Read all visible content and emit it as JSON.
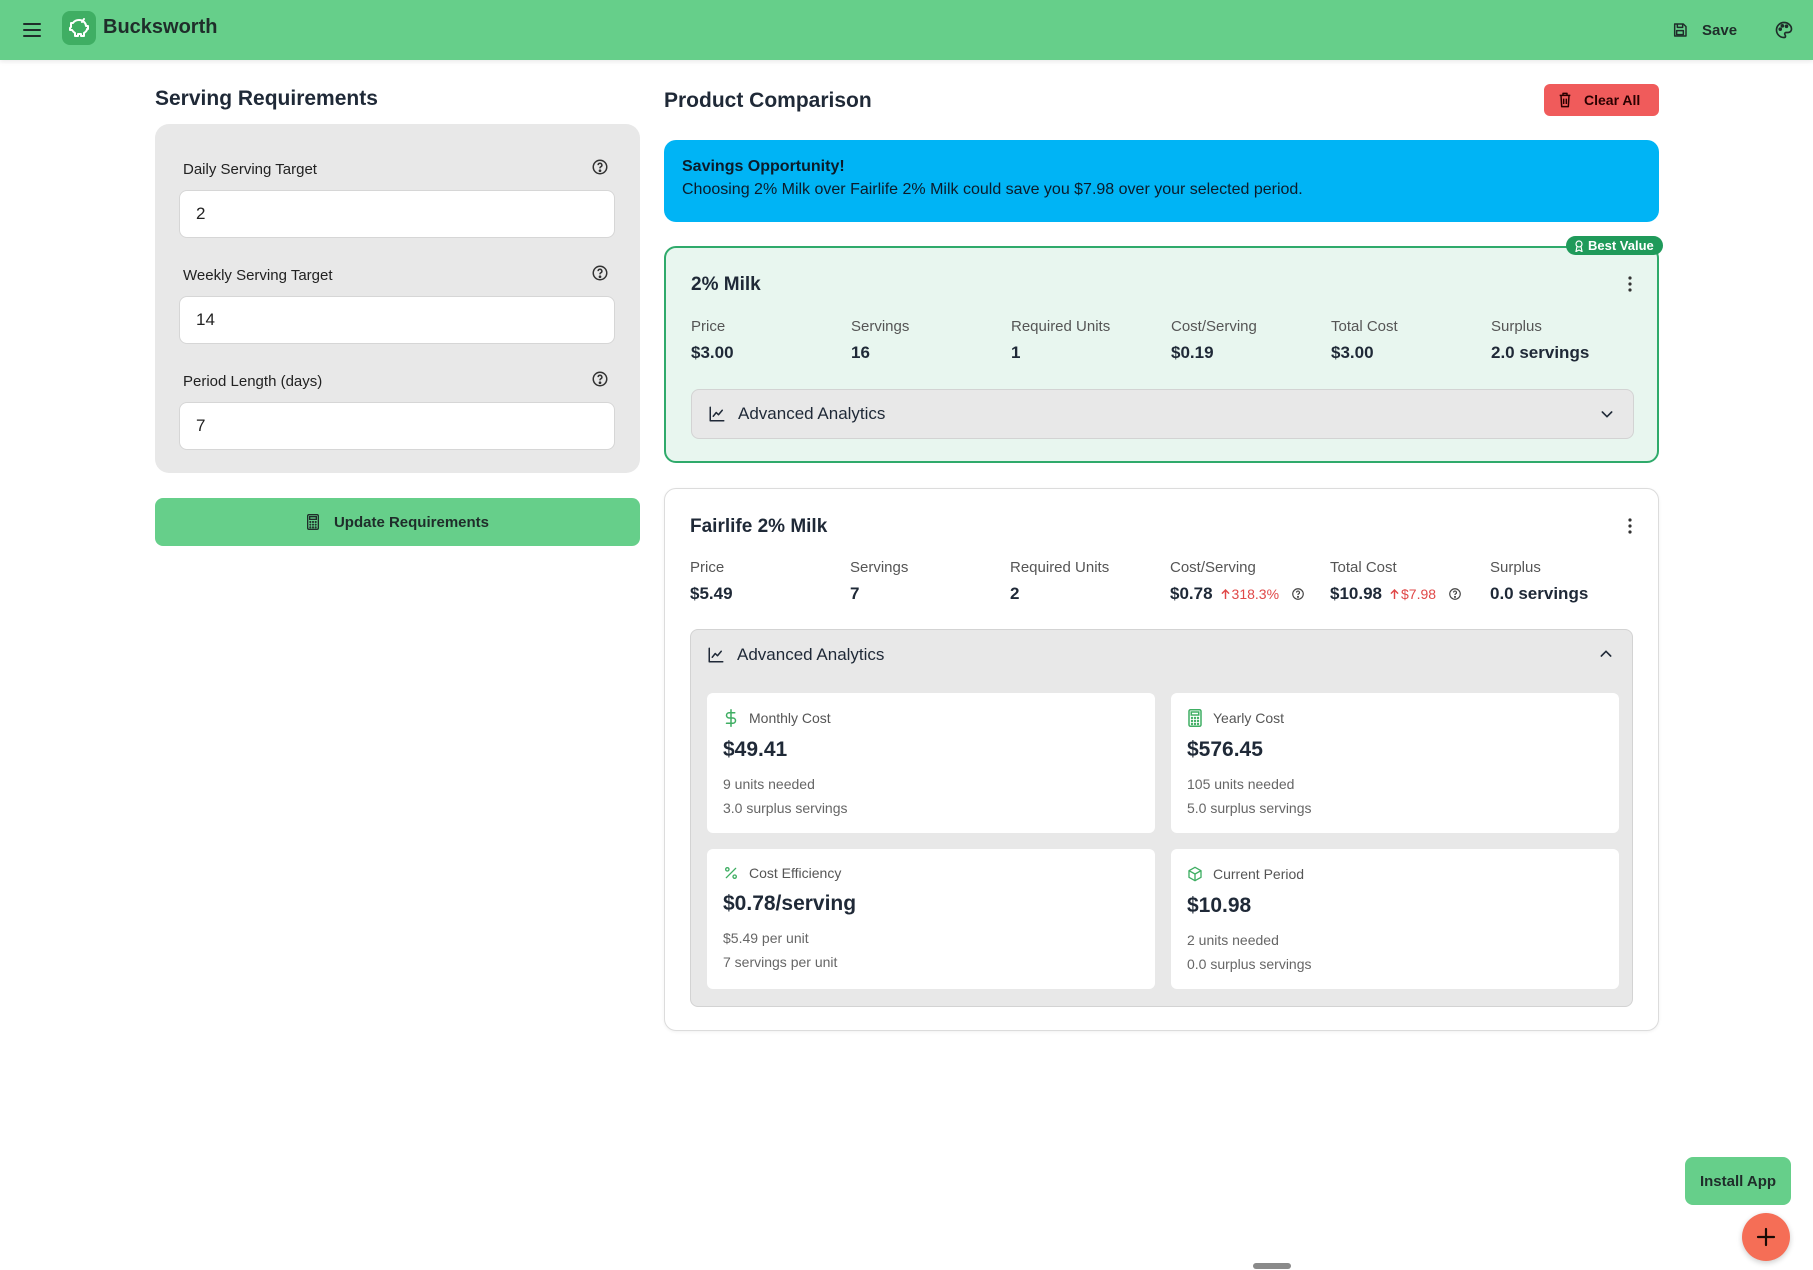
{
  "header": {
    "brand": "Bucksworth",
    "save_label": "Save"
  },
  "requirements": {
    "title": "Serving Requirements",
    "fields": [
      {
        "label": "Daily Serving Target",
        "value": "2"
      },
      {
        "label": "Weekly Serving Target",
        "value": "14"
      },
      {
        "label": "Period Length (days)",
        "value": "7"
      }
    ],
    "update_label": "Update Requirements"
  },
  "comparison": {
    "title": "Product Comparison",
    "clear_label": "Clear All",
    "savings": {
      "title": "Savings Opportunity!",
      "text": "Choosing 2% Milk over Fairlife 2% Milk could save you $7.98 over your selected period."
    },
    "products": [
      {
        "name": "2% Milk",
        "badge": "Best Value",
        "stats": [
          {
            "label": "Price",
            "value": "$3.00"
          },
          {
            "label": "Servings",
            "value": "16"
          },
          {
            "label": "Required Units",
            "value": "1"
          },
          {
            "label": "Cost/Serving",
            "value": "$0.19"
          },
          {
            "label": "Total Cost",
            "value": "$3.00"
          },
          {
            "label": "Surplus",
            "value": "2.0 servings"
          }
        ],
        "analytics_label": "Advanced Analytics"
      },
      {
        "name": "Fairlife 2% Milk",
        "stats": [
          {
            "label": "Price",
            "value": "$5.49"
          },
          {
            "label": "Servings",
            "value": "7"
          },
          {
            "label": "Required Units",
            "value": "2"
          },
          {
            "label": "Cost/Serving",
            "value": "$0.78",
            "delta": "318.3%"
          },
          {
            "label": "Total Cost",
            "value": "$10.98",
            "delta": "$7.98"
          },
          {
            "label": "Surplus",
            "value": "0.0 servings"
          }
        ],
        "analytics_label": "Advanced Analytics",
        "tiles": [
          {
            "icon": "dollar-icon",
            "title": "Monthly Cost",
            "value": "$49.41",
            "line1": "9 units needed",
            "line2": "3.0 surplus servings"
          },
          {
            "icon": "calculator-icon",
            "title": "Yearly Cost",
            "value": "$576.45",
            "line1": "105 units needed",
            "line2": "5.0 surplus servings"
          },
          {
            "icon": "percent-icon",
            "title": "Cost Efficiency",
            "value": "$0.78/serving",
            "line1": "$5.49 per unit",
            "line2": "7 servings per unit"
          },
          {
            "icon": "box-icon",
            "title": "Current Period",
            "value": "$10.98",
            "line1": "2 units needed",
            "line2": "0.0 surplus servings"
          }
        ]
      }
    ]
  },
  "install_label": "Install App",
  "colors": {
    "header": "#66cf8a",
    "accent_green": "#2faa6b",
    "danger": "#f05b5b",
    "info": "#00b4f5",
    "fab": "#f56e56"
  }
}
